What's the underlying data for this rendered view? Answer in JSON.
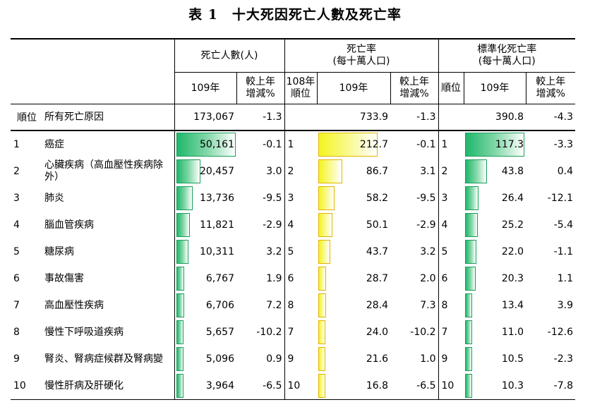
{
  "title": "表 1　十大死因死亡人數及死亡率",
  "headers": {
    "deaths_group": "死亡人數(人)",
    "rate_group": "死亡率",
    "rate_unit": "(每十萬人口)",
    "std_group": "標準化死亡率",
    "std_unit": "(每十萬人口)",
    "year": "109年",
    "change_l1": "較上年",
    "change_l2": "增減%",
    "rank108_l1": "108年",
    "rank108_l2": "順位",
    "rank": "順位"
  },
  "total": {
    "rank_label": "順位",
    "cause": "所有死亡原因",
    "deaths": "173,067",
    "deaths_change": "-1.3",
    "rate": "733.9",
    "rate_change": "-1.3",
    "std": "390.8",
    "std_change": "-4.3"
  },
  "rows": [
    {
      "rank": "1",
      "cause": "癌症",
      "deaths": "50,161",
      "deaths_change": "-0.1",
      "rank108": "1",
      "rate": "212.7",
      "rate_change": "-0.1",
      "std_rank": "1",
      "std": "117.3",
      "std_change": "-3.3",
      "deaths_v": 50161,
      "rate_v": 212.7,
      "std_v": 117.3
    },
    {
      "rank": "2",
      "cause": "心臟疾病（高血壓性疾病除外）",
      "deaths": "20,457",
      "deaths_change": "3.0",
      "rank108": "2",
      "rate": "86.7",
      "rate_change": "3.1",
      "std_rank": "2",
      "std": "43.8",
      "std_change": "0.4",
      "deaths_v": 20457,
      "rate_v": 86.7,
      "std_v": 43.8
    },
    {
      "rank": "3",
      "cause": "肺炎",
      "deaths": "13,736",
      "deaths_change": "-9.5",
      "rank108": "3",
      "rate": "58.2",
      "rate_change": "-9.5",
      "std_rank": "3",
      "std": "26.4",
      "std_change": "-12.1",
      "deaths_v": 13736,
      "rate_v": 58.2,
      "std_v": 26.4
    },
    {
      "rank": "4",
      "cause": "腦血管疾病",
      "deaths": "11,821",
      "deaths_change": "-2.9",
      "rank108": "4",
      "rate": "50.1",
      "rate_change": "-2.9",
      "std_rank": "4",
      "std": "25.2",
      "std_change": "-5.4",
      "deaths_v": 11821,
      "rate_v": 50.1,
      "std_v": 25.2
    },
    {
      "rank": "5",
      "cause": "糖尿病",
      "deaths": "10,311",
      "deaths_change": "3.2",
      "rank108": "5",
      "rate": "43.7",
      "rate_change": "3.2",
      "std_rank": "5",
      "std": "22.0",
      "std_change": "-1.1",
      "deaths_v": 10311,
      "rate_v": 43.7,
      "std_v": 22.0
    },
    {
      "rank": "6",
      "cause": "事故傷害",
      "deaths": "6,767",
      "deaths_change": "1.9",
      "rank108": "6",
      "rate": "28.7",
      "rate_change": "2.0",
      "std_rank": "6",
      "std": "20.3",
      "std_change": "1.1",
      "deaths_v": 6767,
      "rate_v": 28.7,
      "std_v": 20.3
    },
    {
      "rank": "7",
      "cause": "高血壓性疾病",
      "deaths": "6,706",
      "deaths_change": "7.2",
      "rank108": "8",
      "rate": "28.4",
      "rate_change": "7.3",
      "std_rank": "8",
      "std": "13.4",
      "std_change": "3.9",
      "deaths_v": 6706,
      "rate_v": 28.4,
      "std_v": 13.4
    },
    {
      "rank": "8",
      "cause": "慢性下呼吸道疾病",
      "deaths": "5,657",
      "deaths_change": "-10.2",
      "rank108": "7",
      "rate": "24.0",
      "rate_change": "-10.2",
      "std_rank": "7",
      "std": "11.0",
      "std_change": "-12.6",
      "deaths_v": 5657,
      "rate_v": 24.0,
      "std_v": 11.0
    },
    {
      "rank": "9",
      "cause": "腎炎、腎病症候群及腎病變",
      "deaths": "5,096",
      "deaths_change": "0.9",
      "rank108": "9",
      "rate": "21.6",
      "rate_change": "1.0",
      "std_rank": "9",
      "std": "10.5",
      "std_change": "-2.3",
      "deaths_v": 5096,
      "rate_v": 21.6,
      "std_v": 10.5
    },
    {
      "rank": "10",
      "cause": "慢性肝病及肝硬化",
      "deaths": "3,964",
      "deaths_change": "-6.5",
      "rank108": "10",
      "rate": "16.8",
      "rate_change": "-6.5",
      "std_rank": "10",
      "std": "10.3",
      "std_change": "-7.8",
      "deaths_v": 3964,
      "rate_v": 16.8,
      "std_v": 10.3
    }
  ],
  "colors": {
    "deaths_bar": "#1fb86c",
    "rate_bar": "#f4f41e",
    "std_bar": "#1fb86c"
  }
}
